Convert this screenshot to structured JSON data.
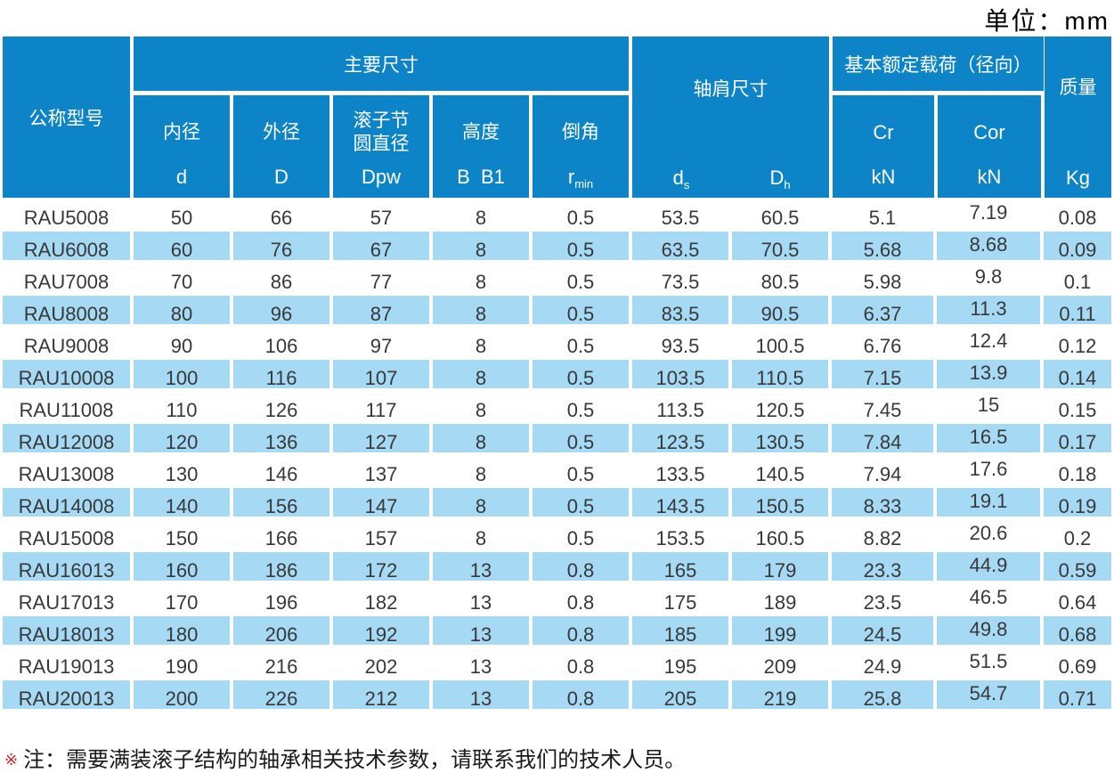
{
  "unit_label": "单位：mm",
  "table": {
    "header": {
      "model": "公称型号",
      "main_dims": "主要尺寸",
      "sub": [
        {
          "name": "内径",
          "symbol": "d"
        },
        {
          "name": "外径",
          "symbol": "D"
        },
        {
          "name": "滚子节圆直径",
          "name_line1": "滚子节",
          "name_line2": "圆直径",
          "symbol": "Dpw"
        },
        {
          "name": "高度",
          "symbol": "B  B1"
        },
        {
          "name": "倒角",
          "symbol": "r",
          "symbol_sub": "min"
        }
      ],
      "shoulder": {
        "title": "轴肩尺寸",
        "col1": "d",
        "col1_sub": "s",
        "col2": "D",
        "col2_sub": "h"
      },
      "load": {
        "title": "基本额定载荷（径向）",
        "col1": "Cr",
        "col2": "Cor",
        "unit": "kN"
      },
      "mass": {
        "title": "质量",
        "unit": "Kg"
      }
    },
    "rows": [
      [
        "RAU5008",
        "50",
        "66",
        "57",
        "8",
        "0.5",
        "53.5",
        "60.5",
        "5.1",
        "7.19",
        "0.08"
      ],
      [
        "RAU6008",
        "60",
        "76",
        "67",
        "8",
        "0.5",
        "63.5",
        "70.5",
        "5.68",
        "8.68",
        "0.09"
      ],
      [
        "RAU7008",
        "70",
        "86",
        "77",
        "8",
        "0.5",
        "73.5",
        "80.5",
        "5.98",
        "9.8",
        "0.1"
      ],
      [
        "RAU8008",
        "80",
        "96",
        "87",
        "8",
        "0.5",
        "83.5",
        "90.5",
        "6.37",
        "11.3",
        "0.11"
      ],
      [
        "RAU9008",
        "90",
        "106",
        "97",
        "8",
        "0.5",
        "93.5",
        "100.5",
        "6.76",
        "12.4",
        "0.12"
      ],
      [
        "RAU10008",
        "100",
        "116",
        "107",
        "8",
        "0.5",
        "103.5",
        "110.5",
        "7.15",
        "13.9",
        "0.14"
      ],
      [
        "RAU11008",
        "110",
        "126",
        "117",
        "8",
        "0.5",
        "113.5",
        "120.5",
        "7.45",
        "15",
        "0.15"
      ],
      [
        "RAU12008",
        "120",
        "136",
        "127",
        "8",
        "0.5",
        "123.5",
        "130.5",
        "7.84",
        "16.5",
        "0.17"
      ],
      [
        "RAU13008",
        "130",
        "146",
        "137",
        "8",
        "0.5",
        "133.5",
        "140.5",
        "7.94",
        "17.6",
        "0.18"
      ],
      [
        "RAU14008",
        "140",
        "156",
        "147",
        "8",
        "0.5",
        "143.5",
        "150.5",
        "8.33",
        "19.1",
        "0.19"
      ],
      [
        "RAU15008",
        "150",
        "166",
        "157",
        "8",
        "0.5",
        "153.5",
        "160.5",
        "8.82",
        "20.6",
        "0.2"
      ],
      [
        "RAU16013",
        "160",
        "186",
        "172",
        "13",
        "0.8",
        "165",
        "179",
        "23.3",
        "44.9",
        "0.59"
      ],
      [
        "RAU17013",
        "170",
        "196",
        "182",
        "13",
        "0.8",
        "175",
        "189",
        "23.5",
        "46.5",
        "0.64"
      ],
      [
        "RAU18013",
        "180",
        "206",
        "192",
        "13",
        "0.8",
        "185",
        "199",
        "24.5",
        "49.8",
        "0.68"
      ],
      [
        "RAU19013",
        "190",
        "216",
        "202",
        "13",
        "0.8",
        "195",
        "209",
        "24.9",
        "51.5",
        "0.69"
      ],
      [
        "RAU20013",
        "200",
        "226",
        "212",
        "13",
        "0.8",
        "205",
        "219",
        "25.8",
        "54.7",
        "0.71"
      ]
    ]
  },
  "footnote": {
    "marker": "※",
    "text": "注：需要满装滚子结构的轴承相关技术参数，请联系我们的技术人员。"
  }
}
